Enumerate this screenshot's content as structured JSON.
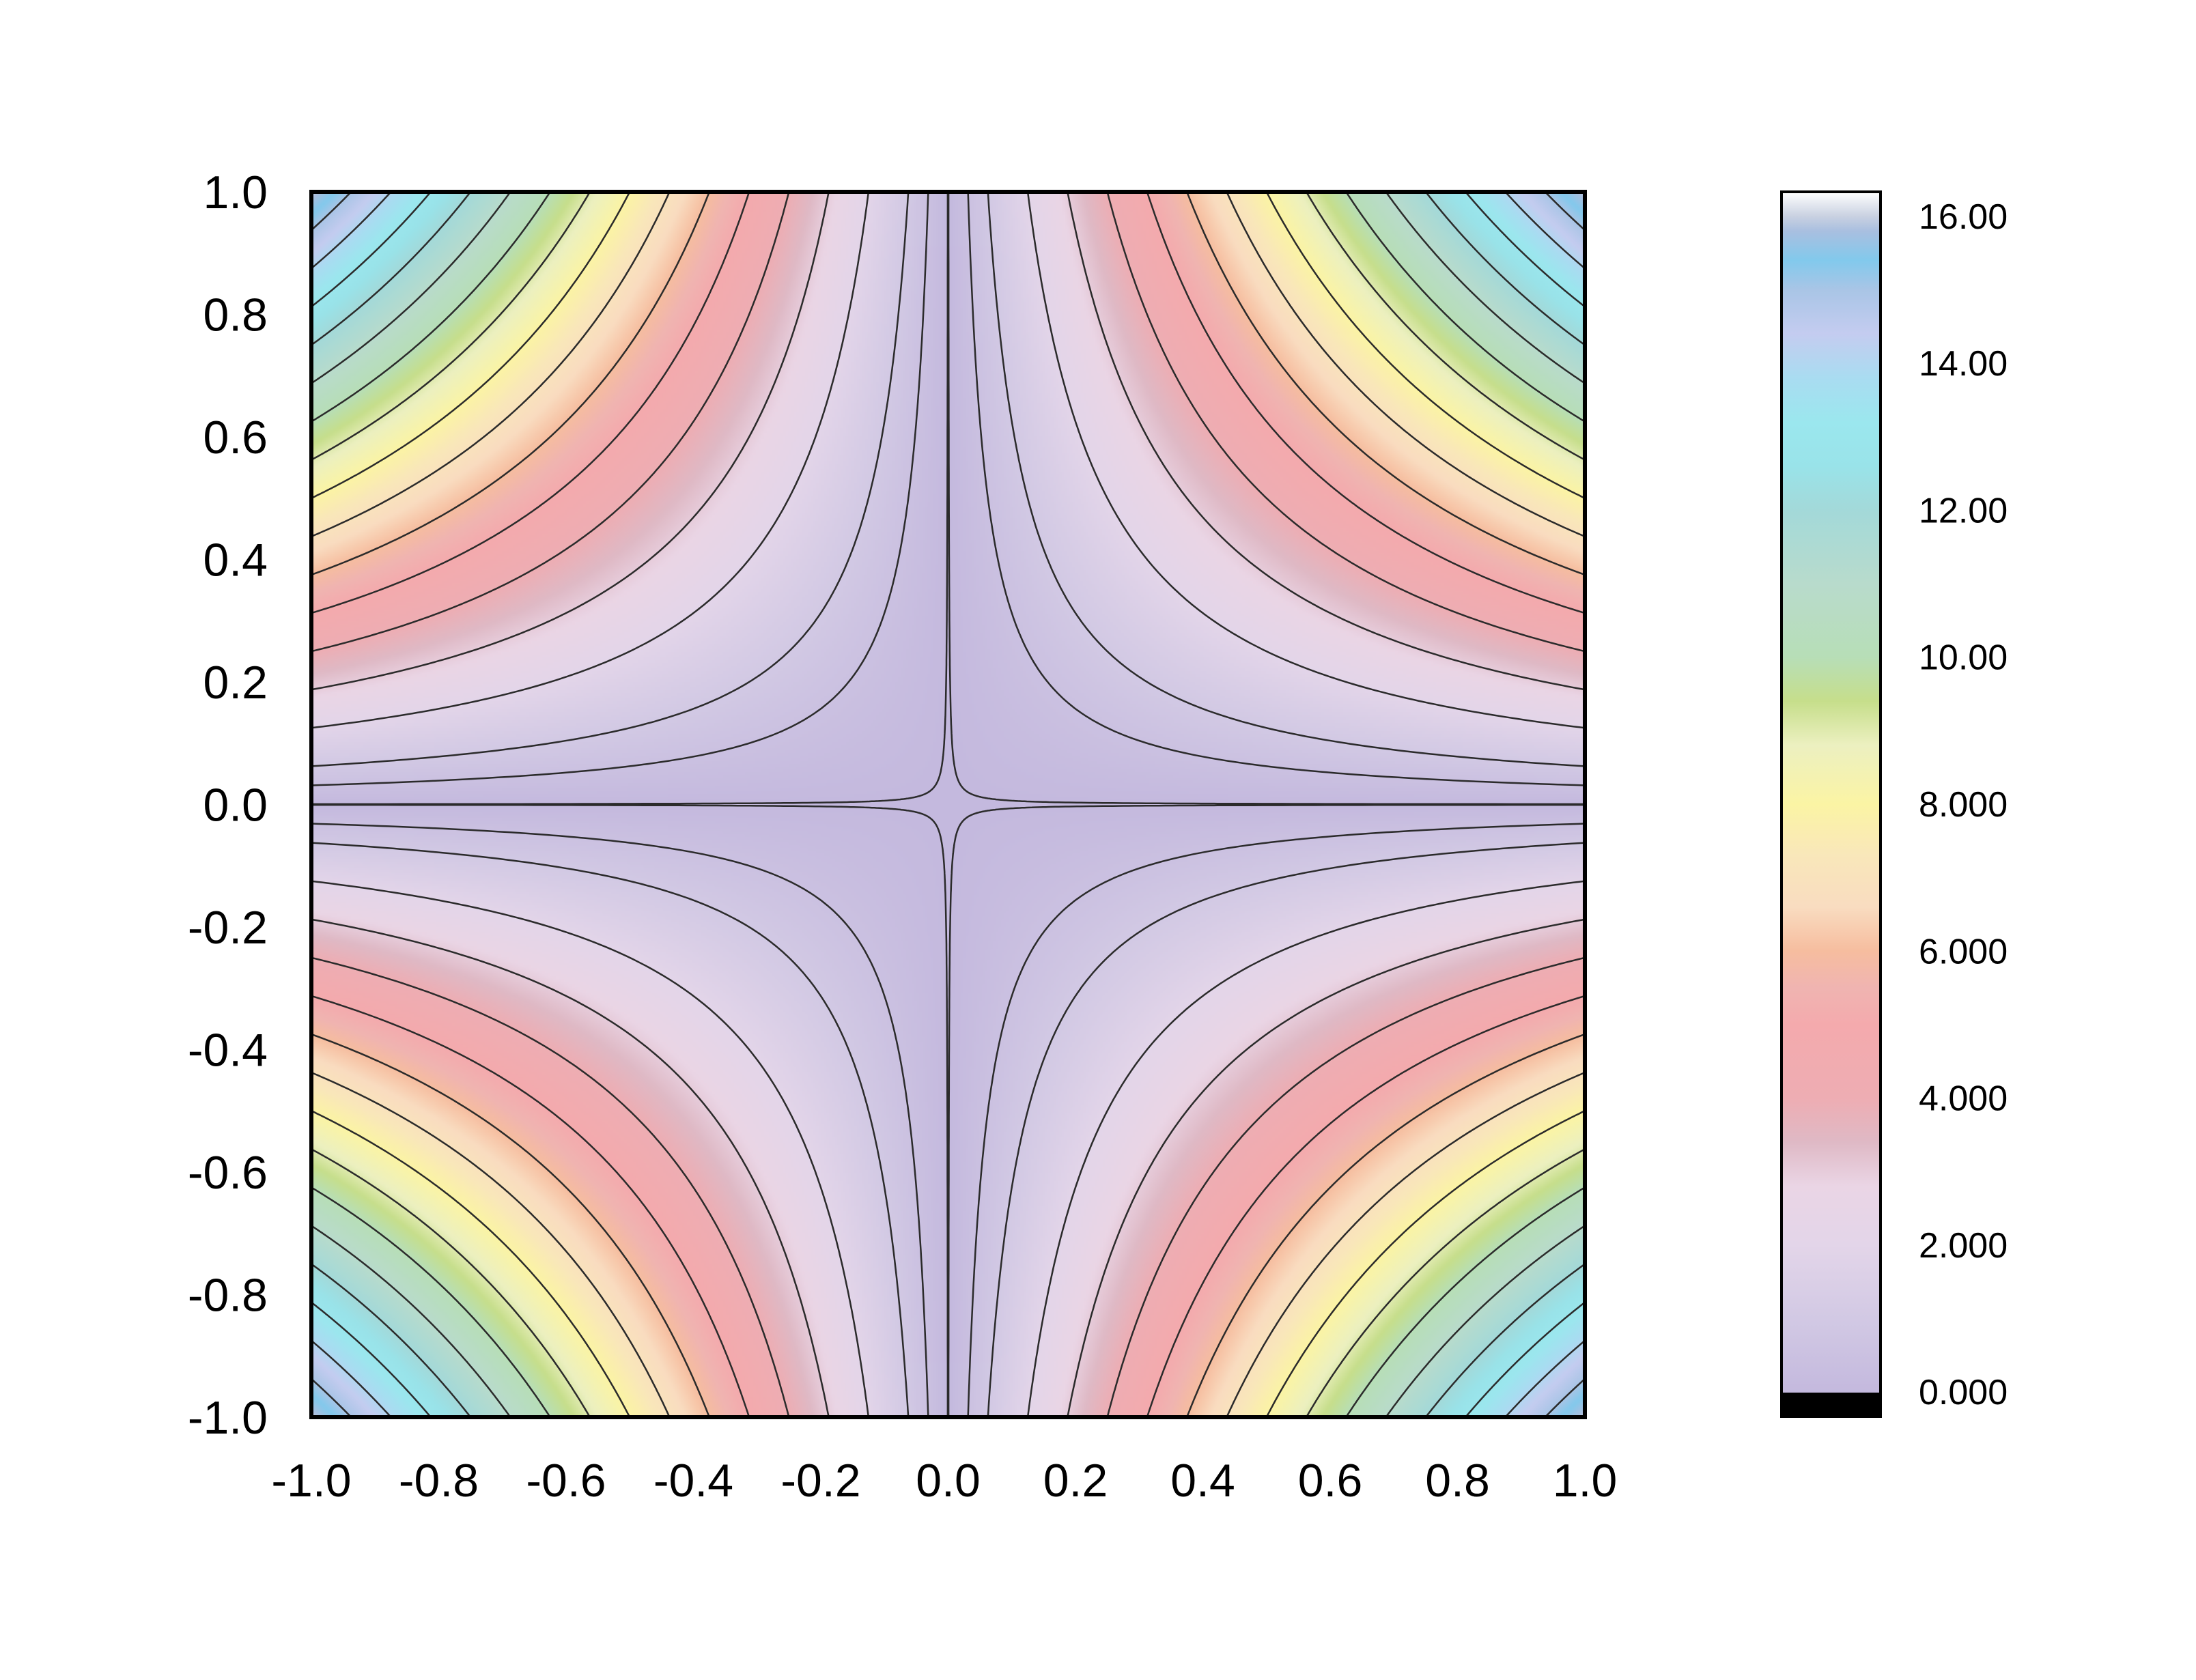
{
  "chart_data": {
    "type": "heatmap",
    "title": "",
    "xlabel": "",
    "ylabel": "",
    "xlim": [
      -1.0,
      1.0
    ],
    "ylim": [
      -1.0,
      1.0
    ],
    "function": "z = 16 * |x * y|",
    "grid": false,
    "x_ticks": [
      {
        "value": -1.0,
        "label": "-1.0"
      },
      {
        "value": -0.8,
        "label": "-0.8"
      },
      {
        "value": -0.6,
        "label": "-0.6"
      },
      {
        "value": -0.4,
        "label": "-0.4"
      },
      {
        "value": -0.2,
        "label": "-0.2"
      },
      {
        "value": 0.0,
        "label": "0.0"
      },
      {
        "value": 0.2,
        "label": "0.2"
      },
      {
        "value": 0.4,
        "label": "0.4"
      },
      {
        "value": 0.6,
        "label": "0.6"
      },
      {
        "value": 0.8,
        "label": "0.8"
      },
      {
        "value": 1.0,
        "label": "1.0"
      }
    ],
    "y_ticks": [
      {
        "value": 1.0,
        "label": "1.0"
      },
      {
        "value": 0.8,
        "label": "0.8"
      },
      {
        "value": 0.6,
        "label": "0.6"
      },
      {
        "value": 0.4,
        "label": "0.4"
      },
      {
        "value": 0.2,
        "label": "0.2"
      },
      {
        "value": 0.0,
        "label": "0.0"
      },
      {
        "value": -0.2,
        "label": "-0.2"
      },
      {
        "value": -0.4,
        "label": "-0.4"
      },
      {
        "value": -0.6,
        "label": "-0.6"
      },
      {
        "value": -0.8,
        "label": "-0.8"
      },
      {
        "value": -1.0,
        "label": "-1.0"
      }
    ],
    "contour_levels": [
      0.01,
      0.5,
      1,
      2,
      3,
      4,
      5,
      6,
      7,
      8,
      9,
      10,
      11,
      12,
      13,
      14,
      15
    ],
    "colorbar": {
      "range": [
        -0.333,
        16.333
      ],
      "ticks": [
        {
          "value": 16,
          "label": "16.00"
        },
        {
          "value": 14,
          "label": "14.00"
        },
        {
          "value": 12,
          "label": "12.00"
        },
        {
          "value": 10,
          "label": "10.00"
        },
        {
          "value": 8,
          "label": "8.000"
        },
        {
          "value": 6,
          "label": "6.000"
        },
        {
          "value": 4,
          "label": "4.000"
        },
        {
          "value": 2,
          "label": "2.000"
        },
        {
          "value": 0,
          "label": "0.000"
        }
      ],
      "stops": [
        {
          "v": 0,
          "c": "#c4b9de"
        },
        {
          "v": 1,
          "c": "#d2c9e4"
        },
        {
          "v": 2,
          "c": "#e3d5e9"
        },
        {
          "v": 2.8,
          "c": "#ead5e5"
        },
        {
          "v": 3.4,
          "c": "#dfb9c5"
        },
        {
          "v": 4,
          "c": "#eeadb3"
        },
        {
          "v": 5,
          "c": "#f4aaad"
        },
        {
          "v": 5.5,
          "c": "#f0b4b1"
        },
        {
          "v": 6,
          "c": "#f6bd9f"
        },
        {
          "v": 6.6,
          "c": "#f9dcc0"
        },
        {
          "v": 7.3,
          "c": "#f9e7ba"
        },
        {
          "v": 8,
          "c": "#fbf4a4"
        },
        {
          "v": 8.8,
          "c": "#ecf0c0"
        },
        {
          "v": 9.4,
          "c": "#c6de8b"
        },
        {
          "v": 10,
          "c": "#b7deb7"
        },
        {
          "v": 11,
          "c": "#b8dbcc"
        },
        {
          "v": 12,
          "c": "#a3d9d9"
        },
        {
          "v": 12.6,
          "c": "#99e3e9"
        },
        {
          "v": 13.2,
          "c": "#9be7ee"
        },
        {
          "v": 13.8,
          "c": "#a9dcf1"
        },
        {
          "v": 14.4,
          "c": "#c4ccf0"
        },
        {
          "v": 15,
          "c": "#a9c5e6"
        },
        {
          "v": 15.4,
          "c": "#82c9ec"
        },
        {
          "v": 15.8,
          "c": "#a9bfe0"
        },
        {
          "v": 16,
          "c": "#c9d1e1"
        },
        {
          "v": 16.333,
          "c": "#ffffff"
        }
      ],
      "below_color": "#000000"
    }
  }
}
